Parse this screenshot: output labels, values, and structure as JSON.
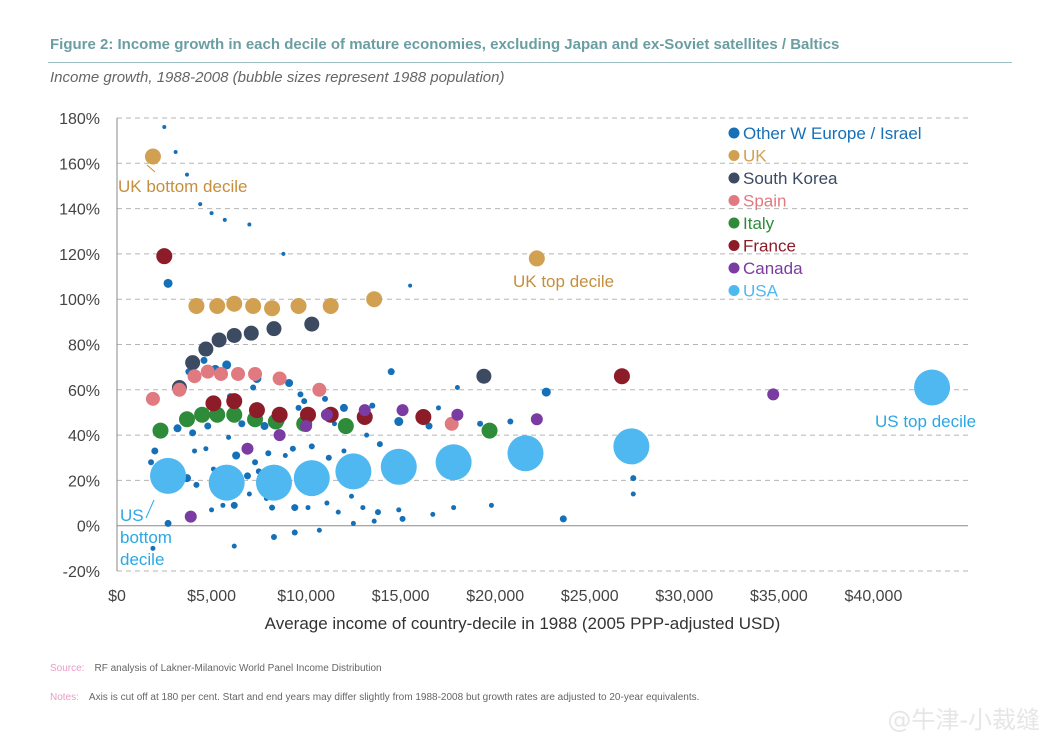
{
  "figure": {
    "title": "Figure 2:  Income growth in each decile of mature economies, excluding Japan and ex-Soviet satellites / Baltics",
    "subtitle": "Income growth, 1988-2008 (bubble sizes represent 1988 population)"
  },
  "footnotes": {
    "source_key": "Source:",
    "source_text": "RF analysis of Lakner-Milanovic World Panel Income Distribution",
    "notes_key": "Notes:",
    "notes_text": "Axis is cut off at 180 per cent. Start and end years may differ slightly from 1988-2008 but growth rates are adjusted to 20-year equivalents."
  },
  "watermark": "@牛津-小裁缝",
  "chart_data": {
    "type": "scatter",
    "bubble": true,
    "xlabel": "Average income of country-decile in 1988 (2005 PPP-adjusted USD)",
    "ylabel": "",
    "xlim": [
      0,
      45000
    ],
    "ylim": [
      -20,
      180
    ],
    "xticks": [
      0,
      5000,
      10000,
      15000,
      20000,
      25000,
      30000,
      35000,
      40000
    ],
    "xtick_labels": [
      "$0",
      "$5,000",
      "$10,000",
      "$15,000",
      "$20,000",
      "$25,000",
      "$30,000",
      "$35,000",
      "$40,000"
    ],
    "yticks": [
      -20,
      0,
      20,
      40,
      60,
      80,
      100,
      120,
      140,
      160,
      180
    ],
    "ytick_labels": [
      "-20%",
      "0%",
      "20%",
      "40%",
      "60%",
      "80%",
      "100%",
      "120%",
      "140%",
      "160%",
      "180%"
    ],
    "grid": "horizontal dashed",
    "legend_position": "top-right",
    "series": [
      {
        "name": "Other W Europe / Israel",
        "color": "#1670b8",
        "points": [
          [
            2500,
            176,
            4
          ],
          [
            3100,
            165,
            4
          ],
          [
            3700,
            155,
            4
          ],
          [
            4400,
            142,
            4
          ],
          [
            5000,
            138,
            4
          ],
          [
            5700,
            135,
            4
          ],
          [
            7000,
            133,
            4
          ],
          [
            8800,
            120,
            4
          ],
          [
            15500,
            106,
            4
          ],
          [
            2700,
            107,
            9
          ],
          [
            4600,
            73,
            7
          ],
          [
            5200,
            69,
            9
          ],
          [
            5800,
            71,
            9
          ],
          [
            6500,
            67,
            8
          ],
          [
            7400,
            65,
            9
          ],
          [
            3800,
            68,
            7
          ],
          [
            9100,
            63,
            8
          ],
          [
            9700,
            58,
            6
          ],
          [
            11000,
            56,
            6
          ],
          [
            13500,
            53,
            6
          ],
          [
            14500,
            68,
            7
          ],
          [
            17000,
            52,
            5
          ],
          [
            18000,
            61,
            5
          ],
          [
            22700,
            59,
            9
          ],
          [
            6000,
            57,
            7
          ],
          [
            7200,
            61,
            6
          ],
          [
            3400,
            60,
            8
          ],
          [
            3200,
            43,
            8
          ],
          [
            4000,
            41,
            7
          ],
          [
            4800,
            44,
            7
          ],
          [
            5300,
            47,
            6
          ],
          [
            6600,
            45,
            7
          ],
          [
            7800,
            44,
            8
          ],
          [
            8700,
            46,
            6
          ],
          [
            9600,
            52,
            6
          ],
          [
            9900,
            55,
            6
          ],
          [
            11500,
            45,
            5
          ],
          [
            12000,
            52,
            8
          ],
          [
            13200,
            40,
            5
          ],
          [
            13900,
            36,
            6
          ],
          [
            14900,
            46,
            9
          ],
          [
            16500,
            44,
            7
          ],
          [
            18000,
            48,
            6
          ],
          [
            20800,
            46,
            6
          ],
          [
            19200,
            45,
            6
          ],
          [
            2000,
            33,
            7
          ],
          [
            4100,
            33,
            5
          ],
          [
            4700,
            34,
            5
          ],
          [
            5900,
            39,
            5
          ],
          [
            6300,
            31,
            8
          ],
          [
            7300,
            28,
            6
          ],
          [
            8000,
            32,
            6
          ],
          [
            8900,
            31,
            5
          ],
          [
            9300,
            34,
            6
          ],
          [
            10300,
            35,
            6
          ],
          [
            11200,
            30,
            6
          ],
          [
            12000,
            33,
            5
          ],
          [
            5100,
            25,
            5
          ],
          [
            6900,
            22,
            7
          ],
          [
            7500,
            24,
            6
          ],
          [
            8600,
            23,
            5
          ],
          [
            9800,
            22,
            6
          ],
          [
            10700,
            18,
            5
          ],
          [
            11900,
            20,
            5
          ],
          [
            1800,
            28,
            6
          ],
          [
            2800,
            21,
            6
          ],
          [
            3700,
            21,
            8
          ],
          [
            4200,
            18,
            6
          ],
          [
            5600,
            9,
            5
          ],
          [
            6200,
            9,
            7
          ],
          [
            7000,
            14,
            5
          ],
          [
            7900,
            12,
            5
          ],
          [
            8200,
            8,
            6
          ],
          [
            9400,
            8,
            7
          ],
          [
            10100,
            8,
            5
          ],
          [
            11100,
            10,
            5
          ],
          [
            11700,
            6,
            5
          ],
          [
            12400,
            13,
            5
          ],
          [
            13000,
            8,
            5
          ],
          [
            13800,
            6,
            6
          ],
          [
            14900,
            7,
            5
          ],
          [
            15100,
            3,
            6
          ],
          [
            13600,
            2,
            5
          ],
          [
            16700,
            5,
            5
          ],
          [
            17800,
            8,
            5
          ],
          [
            19800,
            9,
            5
          ],
          [
            23600,
            3,
            7
          ],
          [
            27300,
            21,
            6
          ],
          [
            27300,
            14,
            5
          ],
          [
            2700,
            1,
            7
          ],
          [
            5000,
            7,
            5
          ],
          [
            9400,
            -3,
            6
          ],
          [
            12500,
            1,
            5
          ],
          [
            10700,
            -2,
            5
          ],
          [
            8300,
            -5,
            6
          ],
          [
            6200,
            -9,
            5
          ],
          [
            1900,
            -10,
            5
          ]
        ]
      },
      {
        "name": "UK",
        "color": "#d1a051",
        "points": [
          [
            1900,
            163,
            16
          ],
          [
            4200,
            97,
            16
          ],
          [
            5300,
            97,
            16
          ],
          [
            6200,
            98,
            16
          ],
          [
            7200,
            97,
            16
          ],
          [
            8200,
            96,
            16
          ],
          [
            9600,
            97,
            16
          ],
          [
            11300,
            97,
            16
          ],
          [
            13600,
            100,
            16
          ],
          [
            22200,
            118,
            16
          ]
        ]
      },
      {
        "name": "South Korea",
        "color": "#3c4a62",
        "points": [
          [
            3300,
            61,
            15
          ],
          [
            4000,
            72,
            15
          ],
          [
            4700,
            78,
            15
          ],
          [
            5400,
            82,
            15
          ],
          [
            6200,
            84,
            15
          ],
          [
            7100,
            85,
            15
          ],
          [
            8300,
            87,
            15
          ],
          [
            10300,
            89,
            15
          ],
          [
            19400,
            66,
            15
          ]
        ]
      },
      {
        "name": "Spain",
        "color": "#e07980",
        "points": [
          [
            1900,
            56,
            14
          ],
          [
            3300,
            60,
            14
          ],
          [
            4100,
            66,
            14
          ],
          [
            4800,
            68,
            14
          ],
          [
            5500,
            67,
            14
          ],
          [
            6400,
            67,
            14
          ],
          [
            7300,
            67,
            14
          ],
          [
            8600,
            65,
            14
          ],
          [
            10700,
            60,
            14
          ],
          [
            17700,
            45,
            14
          ]
        ]
      },
      {
        "name": "Italy",
        "color": "#2e8b3a",
        "points": [
          [
            2300,
            42,
            16
          ],
          [
            3700,
            47,
            16
          ],
          [
            4500,
            49,
            16
          ],
          [
            5300,
            49,
            16
          ],
          [
            6200,
            49,
            16
          ],
          [
            7300,
            47,
            16
          ],
          [
            8400,
            46,
            16
          ],
          [
            9900,
            45,
            16
          ],
          [
            12100,
            44,
            16
          ],
          [
            19700,
            42,
            16
          ]
        ]
      },
      {
        "name": "France",
        "color": "#8c1c28",
        "points": [
          [
            2500,
            119,
            16
          ],
          [
            5100,
            54,
            16
          ],
          [
            6200,
            55,
            16
          ],
          [
            7400,
            51,
            16
          ],
          [
            8600,
            49,
            16
          ],
          [
            10100,
            49,
            16
          ],
          [
            11300,
            49,
            16
          ],
          [
            13100,
            48,
            16
          ],
          [
            16200,
            48,
            16
          ],
          [
            26700,
            66,
            16
          ]
        ]
      },
      {
        "name": "Canada",
        "color": "#7a3ba3",
        "points": [
          [
            3900,
            4,
            12
          ],
          [
            6900,
            34,
            12
          ],
          [
            8600,
            40,
            12
          ],
          [
            10000,
            44,
            12
          ],
          [
            11100,
            49,
            12
          ],
          [
            13100,
            51,
            12
          ],
          [
            15100,
            51,
            12
          ],
          [
            18000,
            49,
            12
          ],
          [
            22200,
            47,
            12
          ],
          [
            34700,
            58,
            12
          ]
        ]
      },
      {
        "name": "USA",
        "color": "#50b8f0",
        "points": [
          [
            2700,
            22,
            36
          ],
          [
            5800,
            19,
            36
          ],
          [
            8300,
            19,
            36
          ],
          [
            10300,
            21,
            36
          ],
          [
            12500,
            24,
            36
          ],
          [
            14900,
            26,
            36
          ],
          [
            17800,
            28,
            36
          ],
          [
            21600,
            32,
            36
          ],
          [
            27200,
            35,
            36
          ],
          [
            43100,
            61,
            36
          ]
        ]
      }
    ],
    "annotations": [
      {
        "text": "UK bottom decile",
        "color": "#c58f3c",
        "series": "UK",
        "point": 0
      },
      {
        "text": "UK top decile",
        "color": "#c58f3c",
        "series": "UK",
        "point": 9
      },
      {
        "text": "US top decile",
        "color": "#2aa7e6",
        "series": "USA",
        "point": 9
      },
      {
        "text": "US",
        "color": "#2aa7e6",
        "series": "USA",
        "point": 0
      },
      {
        "text": "bottom",
        "color": "#2aa7e6",
        "series": "USA",
        "point": 0
      },
      {
        "text": "decile",
        "color": "#2aa7e6",
        "series": "USA",
        "point": 0
      }
    ]
  }
}
